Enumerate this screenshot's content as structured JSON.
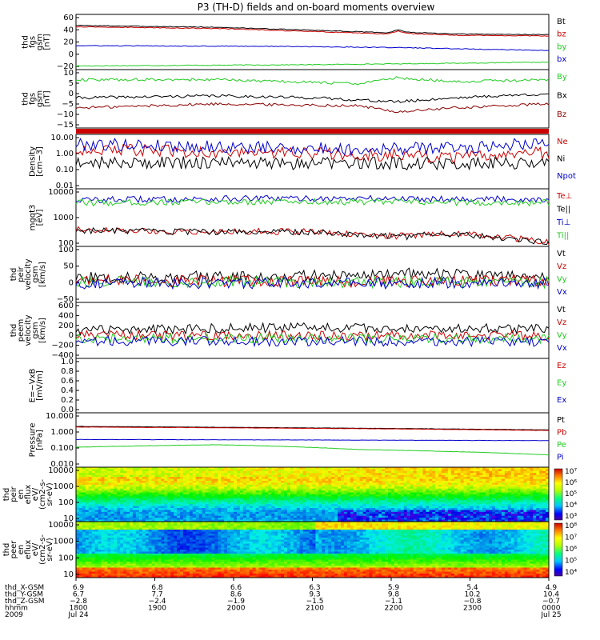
{
  "title": "P3 (TH-D) fields and on-board moments overview",
  "colors": {
    "black": "#000000",
    "red": "#cc0000",
    "green": "#22cc22",
    "blue": "#0000cc",
    "darkred": "#8b0000"
  },
  "chart_data": [
    {
      "id": "fgs_gsm",
      "type": "line",
      "ylabel": [
        "thd",
        "fgs",
        "gsm",
        "[nT]"
      ],
      "yticks": [
        "60",
        "40",
        "20",
        "0",
        "−20"
      ],
      "ylim": [
        -25,
        65
      ],
      "series": [
        {
          "name": "Bt",
          "color": "black",
          "trend": [
            [
              0,
              47
            ],
            [
              0.3,
              44
            ],
            [
              0.55,
              38
            ],
            [
              0.66,
              35
            ],
            [
              0.68,
              40
            ],
            [
              0.7,
              36
            ],
            [
              0.8,
              33
            ],
            [
              1,
              32
            ]
          ]
        },
        {
          "name": "bz",
          "color": "red",
          "trend": [
            [
              0,
              45
            ],
            [
              0.3,
              42
            ],
            [
              0.55,
              36
            ],
            [
              0.66,
              33
            ],
            [
              0.68,
              38
            ],
            [
              0.7,
              34
            ],
            [
              0.8,
              31
            ],
            [
              1,
              30
            ]
          ]
        },
        {
          "name": "by",
          "color": "green",
          "trend": [
            [
              0,
              -19
            ],
            [
              0.5,
              -17
            ],
            [
              1,
              -13
            ]
          ]
        },
        {
          "name": "bx",
          "color": "blue",
          "trend": [
            [
              0,
              14
            ],
            [
              0.4,
              13
            ],
            [
              0.68,
              11
            ],
            [
              1,
              6
            ]
          ]
        }
      ]
    },
    {
      "id": "fgs_gsm_zoom",
      "type": "line",
      "ylabel": [
        "thd",
        "fgs",
        "gsm",
        "[nT]"
      ],
      "yticks": [
        "10",
        "5",
        "0",
        "−5",
        "−10",
        "−15"
      ],
      "ylim": [
        -18,
        11
      ],
      "series": [
        {
          "name": "By",
          "color": "green",
          "trend": [
            [
              0,
              6
            ],
            [
              0.3,
              6
            ],
            [
              0.6,
              4
            ],
            [
              0.68,
              7
            ],
            [
              0.8,
              5
            ],
            [
              1,
              6
            ]
          ]
        },
        {
          "name": "Bx",
          "color": "black",
          "trend": [
            [
              0,
              -3
            ],
            [
              0.3,
              -2
            ],
            [
              0.5,
              -3
            ],
            [
              0.68,
              -5
            ],
            [
              0.8,
              -3
            ],
            [
              1,
              -1
            ]
          ]
        },
        {
          "name": "Bz",
          "color": "darkred",
          "trend": [
            [
              0,
              -8
            ],
            [
              0.3,
              -6
            ],
            [
              0.6,
              -7
            ],
            [
              0.68,
              -10
            ],
            [
              0.8,
              -8
            ],
            [
              1,
              -6
            ]
          ]
        }
      ]
    },
    {
      "id": "density",
      "type": "line",
      "scale": "log",
      "ylabel": [
        "Density",
        "[cm−3]"
      ],
      "yticks": [
        "10.00",
        "1.00",
        "0.10",
        "0.01"
      ],
      "ylim": [
        0.01,
        10
      ],
      "series": [
        {
          "name": "Ne",
          "color": "red",
          "trend": [
            [
              0,
              1.5
            ],
            [
              0.3,
              1.0
            ],
            [
              0.6,
              0.8
            ],
            [
              0.8,
              0.5
            ],
            [
              1,
              1.0
            ]
          ]
        },
        {
          "name": "Ni",
          "color": "black",
          "trend": [
            [
              0,
              0.3
            ],
            [
              0.5,
              0.25
            ],
            [
              1,
              0.25
            ]
          ]
        },
        {
          "name": "Npot",
          "color": "blue",
          "trend": [
            [
              0,
              3
            ],
            [
              0.3,
              2
            ],
            [
              0.6,
              1.5
            ],
            [
              0.85,
              2
            ],
            [
              1,
              4
            ]
          ]
        }
      ]
    },
    {
      "id": "temperature",
      "type": "line",
      "scale": "log",
      "ylabel": [
        "mgqt3",
        "[eV]"
      ],
      "yticks": [
        "10000",
        "1000",
        "100"
      ],
      "ylim": [
        20,
        10000
      ],
      "series": [
        {
          "name": "Te⊥",
          "color": "red",
          "trend": [
            [
              0,
              120
            ],
            [
              0.2,
              100
            ],
            [
              0.5,
              100
            ],
            [
              0.68,
              60
            ],
            [
              0.8,
              80
            ],
            [
              1,
              30
            ]
          ]
        },
        {
          "name": "Te||",
          "color": "black",
          "trend": [
            [
              0,
              115
            ],
            [
              0.2,
              95
            ],
            [
              0.5,
              95
            ],
            [
              0.68,
              55
            ],
            [
              0.8,
              75
            ],
            [
              1,
              28
            ]
          ]
        },
        {
          "name": "Ti⊥",
          "color": "blue",
          "trend": [
            [
              0,
              3000
            ],
            [
              0.4,
              3500
            ],
            [
              0.7,
              3500
            ],
            [
              1,
              3200
            ]
          ]
        },
        {
          "name": "Ti||",
          "color": "green",
          "trend": [
            [
              0,
              2200
            ],
            [
              0.4,
              2500
            ],
            [
              0.7,
              2400
            ],
            [
              1,
              2200
            ]
          ]
        }
      ]
    },
    {
      "id": "peir_velocity",
      "type": "line",
      "ylabel": [
        "thd",
        "peir",
        "velocity",
        "gsm",
        "[km/s]"
      ],
      "yticks": [
        "100",
        "50",
        "0",
        "−50"
      ],
      "ylim": [
        -65,
        110
      ],
      "series": [
        {
          "name": "Vt",
          "color": "black",
          "trend": [
            [
              0,
              12
            ],
            [
              0.5,
              18
            ],
            [
              0.68,
              25
            ],
            [
              1,
              15
            ]
          ]
        },
        {
          "name": "Vz",
          "color": "red",
          "trend": [
            [
              0,
              5
            ],
            [
              0.5,
              0
            ],
            [
              1,
              3
            ]
          ]
        },
        {
          "name": "Vy",
          "color": "green",
          "trend": [
            [
              0,
              0
            ],
            [
              1,
              -2
            ]
          ]
        },
        {
          "name": "Vx",
          "color": "blue",
          "trend": [
            [
              0,
              -5
            ],
            [
              0.5,
              -5
            ],
            [
              1,
              -3
            ]
          ]
        }
      ]
    },
    {
      "id": "peem_velocity",
      "type": "line",
      "ylabel": [
        "thd",
        "peem",
        "velocity",
        "gsm",
        "[km/s]"
      ],
      "yticks": [
        "600",
        "400",
        "200",
        "0",
        "−200",
        "−400"
      ],
      "ylim": [
        -430,
        620
      ],
      "series": [
        {
          "name": "Vt",
          "color": "black",
          "trend": [
            [
              0,
              100
            ],
            [
              0.5,
              150
            ],
            [
              1,
              120
            ]
          ]
        },
        {
          "name": "Vz",
          "color": "red",
          "trend": [
            [
              0,
              0
            ],
            [
              1,
              0
            ]
          ]
        },
        {
          "name": "Vy",
          "color": "green",
          "trend": [
            [
              0,
              -50
            ],
            [
              1,
              -60
            ]
          ]
        },
        {
          "name": "Vx",
          "color": "blue",
          "trend": [
            [
              0,
              -100
            ],
            [
              1,
              -120
            ]
          ]
        }
      ]
    },
    {
      "id": "efield",
      "type": "line",
      "ylabel": [
        "E=−VxB",
        "[mV/m]"
      ],
      "yticks": [
        "1.0",
        "0.8",
        "0.6",
        "0.4",
        "0.2",
        "0.0"
      ],
      "ylim": [
        0,
        1
      ],
      "series": [
        {
          "name": "Ez",
          "color": "red",
          "trend": []
        },
        {
          "name": "Ey",
          "color": "green",
          "trend": []
        },
        {
          "name": "Ex",
          "color": "blue",
          "trend": []
        }
      ]
    },
    {
      "id": "pressure",
      "type": "line",
      "scale": "log",
      "ylabel": [
        "Pressure",
        "[nPa]"
      ],
      "yticks": [
        "10.000",
        "1.000",
        "0.100",
        "0.010"
      ],
      "ylim": [
        0.001,
        10
      ],
      "series": [
        {
          "name": "Pt",
          "color": "black",
          "trend": [
            [
              0,
              1.0
            ],
            [
              0.55,
              0.75
            ],
            [
              0.68,
              0.7
            ],
            [
              1,
              0.55
            ]
          ]
        },
        {
          "name": "Pb",
          "color": "red",
          "trend": [
            [
              0,
              0.9
            ],
            [
              0.55,
              0.7
            ],
            [
              0.68,
              0.65
            ],
            [
              1,
              0.5
            ]
          ]
        },
        {
          "name": "Pe",
          "color": "green",
          "trend": [
            [
              0,
              0.03
            ],
            [
              0.3,
              0.045
            ],
            [
              0.6,
              0.02
            ],
            [
              1,
              0.008
            ]
          ]
        },
        {
          "name": "Pi",
          "color": "blue",
          "trend": [
            [
              0,
              0.11
            ],
            [
              0.5,
              0.1
            ],
            [
              1,
              0.09
            ]
          ]
        }
      ]
    },
    {
      "id": "peir_spectrogram",
      "type": "heatmap",
      "ylabel": [
        "thd",
        "peir",
        "en",
        "eflux",
        "eV/",
        "(cm2-s-",
        "sr-eV)"
      ],
      "yticks": [
        "10000",
        "1000",
        "100",
        "10"
      ],
      "ylim": [
        7,
        20000
      ],
      "colorbar": [
        "10⁷",
        "10⁶",
        "10⁵",
        "10⁴",
        "10³"
      ]
    },
    {
      "id": "peer_spectrogram",
      "type": "heatmap",
      "ylabel": [
        "thd",
        "peer",
        "en",
        "eflux",
        "eV/",
        "(cm2-s-",
        "sr-eV)"
      ],
      "yticks": [
        "10000",
        "1000",
        "100",
        "10"
      ],
      "ylim": [
        7,
        20000
      ],
      "colorbar": [
        "10⁸",
        "10⁷",
        "10⁶",
        "10⁵",
        "10⁴"
      ]
    }
  ],
  "xaxis": {
    "row_labels": [
      "thd_X-GSM",
      "thd_Y-GSM",
      "thd_Z-GSM",
      "hhmm",
      "2009"
    ],
    "columns": [
      {
        "x": "6.9",
        "y": "6.7",
        "z": "−2.8",
        "hhmm": "1800",
        "date": "Jul 24"
      },
      {
        "x": "6.8",
        "y": "7.7",
        "z": "−2.4",
        "hhmm": "1900",
        "date": ""
      },
      {
        "x": "6.6",
        "y": "8.6",
        "z": "−1.9",
        "hhmm": "2000",
        "date": ""
      },
      {
        "x": "6.3",
        "y": "9.3",
        "z": "−1.5",
        "hhmm": "2100",
        "date": ""
      },
      {
        "x": "5.9",
        "y": "9.8",
        "z": "−1.1",
        "hhmm": "2200",
        "date": ""
      },
      {
        "x": "5.4",
        "y": "10.2",
        "z": "−0.8",
        "hhmm": "2300",
        "date": ""
      },
      {
        "x": "4.9",
        "y": "10.4",
        "z": "−0.7",
        "hhmm": "0000",
        "date": "Jul 25"
      }
    ]
  }
}
